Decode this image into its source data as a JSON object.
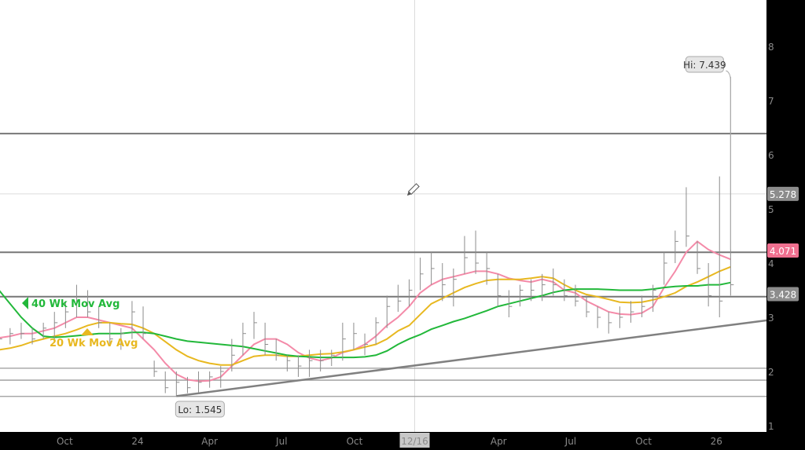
{
  "chart_data": {
    "type": "bar-ohlc",
    "title": "",
    "xlabel": "",
    "ylabel": "",
    "ylim": [
      0.85,
      8.85
    ],
    "grid": false,
    "y_ticks": [
      1,
      2,
      3,
      4,
      5,
      6,
      7,
      8
    ],
    "x_ticks": [
      {
        "d": "2023-10-01",
        "label": "Oct"
      },
      {
        "d": "2024-01-01",
        "label": "24"
      },
      {
        "d": "2024-04-01",
        "label": "Apr"
      },
      {
        "d": "2024-07-01",
        "label": "Jul"
      },
      {
        "d": "2024-10-01",
        "label": "Oct"
      },
      {
        "d": "2024-12-16",
        "label": "12/16",
        "highlight": true
      },
      {
        "d": "2025-04-01",
        "label": "Apr"
      },
      {
        "d": "2025-07-01",
        "label": "Jul"
      },
      {
        "d": "2025-10-01",
        "label": "Oct"
      },
      {
        "d": "2026-01-01",
        "label": "26"
      }
    ],
    "bar_fields": [
      "date",
      "high",
      "low",
      "close"
    ],
    "bars": [
      [
        "2023-07-10",
        2.8,
        2.5,
        2.6
      ],
      [
        "2023-07-24",
        2.8,
        2.5,
        2.7
      ],
      [
        "2023-08-07",
        2.9,
        2.6,
        2.7
      ],
      [
        "2023-08-21",
        2.8,
        2.5,
        2.6
      ],
      [
        "2023-09-04",
        2.9,
        2.6,
        2.8
      ],
      [
        "2023-09-18",
        3.1,
        2.6,
        2.9
      ],
      [
        "2023-10-02",
        3.3,
        2.8,
        3.1
      ],
      [
        "2023-10-16",
        3.6,
        3.0,
        3.3
      ],
      [
        "2023-10-30",
        3.5,
        3.0,
        3.1
      ],
      [
        "2023-11-13",
        3.2,
        2.8,
        2.9
      ],
      [
        "2023-11-27",
        2.9,
        2.5,
        2.6
      ],
      [
        "2023-12-11",
        2.8,
        2.4,
        2.7
      ],
      [
        "2023-12-25",
        3.3,
        2.6,
        3.1
      ],
      [
        "2024-01-08",
        3.2,
        2.6,
        2.7
      ],
      [
        "2024-01-22",
        2.2,
        1.9,
        2.0
      ],
      [
        "2024-02-05",
        2.0,
        1.6,
        1.7
      ],
      [
        "2024-02-19",
        2.0,
        1.545,
        1.8
      ],
      [
        "2024-03-04",
        1.9,
        1.6,
        1.7
      ],
      [
        "2024-03-18",
        2.0,
        1.6,
        1.8
      ],
      [
        "2024-04-01",
        2.0,
        1.7,
        1.9
      ],
      [
        "2024-04-15",
        2.1,
        1.7,
        2.0
      ],
      [
        "2024-04-29",
        2.6,
        2.0,
        2.3
      ],
      [
        "2024-05-13",
        2.9,
        2.3,
        2.7
      ],
      [
        "2024-05-27",
        3.1,
        2.6,
        2.9
      ],
      [
        "2024-06-10",
        2.9,
        2.3,
        2.5
      ],
      [
        "2024-06-24",
        2.6,
        2.2,
        2.3
      ],
      [
        "2024-07-08",
        2.3,
        2.0,
        2.2
      ],
      [
        "2024-07-22",
        2.3,
        1.9,
        2.1
      ],
      [
        "2024-08-05",
        2.4,
        1.9,
        2.2
      ],
      [
        "2024-08-19",
        2.4,
        2.0,
        2.2
      ],
      [
        "2024-09-02",
        2.4,
        2.1,
        2.3
      ],
      [
        "2024-09-16",
        2.9,
        2.2,
        2.6
      ],
      [
        "2024-09-30",
        2.9,
        2.4,
        2.7
      ],
      [
        "2024-10-14",
        2.7,
        2.3,
        2.5
      ],
      [
        "2024-10-28",
        3.0,
        2.5,
        2.9
      ],
      [
        "2024-11-11",
        3.4,
        2.8,
        3.2
      ],
      [
        "2024-11-25",
        3.6,
        3.1,
        3.3
      ],
      [
        "2024-12-09",
        3.7,
        3.2,
        3.5
      ],
      [
        "2024-12-23",
        4.1,
        3.5,
        3.8
      ],
      [
        "2025-01-06",
        4.2,
        3.6,
        3.9
      ],
      [
        "2025-01-20",
        4.0,
        3.3,
        3.6
      ],
      [
        "2025-02-03",
        3.9,
        3.2,
        3.7
      ],
      [
        "2025-02-17",
        4.5,
        3.8,
        4.1
      ],
      [
        "2025-03-03",
        4.6,
        3.8,
        4.0
      ],
      [
        "2025-03-17",
        4.2,
        3.6,
        3.9
      ],
      [
        "2025-03-31",
        3.8,
        3.2,
        3.4
      ],
      [
        "2025-04-14",
        3.5,
        3.0,
        3.2
      ],
      [
        "2025-04-28",
        3.6,
        3.2,
        3.5
      ],
      [
        "2025-05-12",
        3.7,
        3.3,
        3.5
      ],
      [
        "2025-05-26",
        3.8,
        3.3,
        3.6
      ],
      [
        "2025-06-09",
        3.9,
        3.4,
        3.6
      ],
      [
        "2025-06-23",
        3.7,
        3.3,
        3.4
      ],
      [
        "2025-07-07",
        3.6,
        3.2,
        3.3
      ],
      [
        "2025-07-21",
        3.4,
        3.0,
        3.1
      ],
      [
        "2025-08-04",
        3.2,
        2.8,
        3.0
      ],
      [
        "2025-08-18",
        3.1,
        2.7,
        2.9
      ],
      [
        "2025-09-01",
        3.2,
        2.8,
        3.0
      ],
      [
        "2025-09-15",
        3.3,
        2.9,
        3.1
      ],
      [
        "2025-09-29",
        3.4,
        3.0,
        3.2
      ],
      [
        "2025-10-13",
        3.6,
        3.1,
        3.5
      ],
      [
        "2025-10-27",
        4.2,
        3.6,
        4.0
      ],
      [
        "2025-11-10",
        4.6,
        4.0,
        4.4
      ],
      [
        "2025-11-24",
        5.4,
        4.3,
        4.5
      ],
      [
        "2025-12-08",
        4.4,
        3.8,
        3.9
      ],
      [
        "2025-12-22",
        4.0,
        3.2,
        3.4
      ],
      [
        "2026-01-05",
        5.6,
        3.0,
        3.3
      ],
      [
        "2026-01-19",
        7.439,
        3.4,
        3.6
      ]
    ],
    "moving_averages": [
      {
        "name": "",
        "color": "#f48aa8",
        "values": [
          2.62,
          2.65,
          2.7,
          2.7,
          2.75,
          2.8,
          2.9,
          3.0,
          3.0,
          2.95,
          2.9,
          2.85,
          2.8,
          2.6,
          2.4,
          2.15,
          1.95,
          1.85,
          1.82,
          1.83,
          1.9,
          2.1,
          2.3,
          2.5,
          2.6,
          2.6,
          2.5,
          2.35,
          2.25,
          2.2,
          2.25,
          2.35,
          2.4,
          2.5,
          2.65,
          2.85,
          3.0,
          3.2,
          3.45,
          3.6,
          3.7,
          3.75,
          3.8,
          3.85,
          3.85,
          3.8,
          3.72,
          3.68,
          3.65,
          3.7,
          3.65,
          3.5,
          3.45,
          3.3,
          3.2,
          3.1,
          3.06,
          3.05,
          3.08,
          3.2,
          3.55,
          3.85,
          4.2,
          4.4,
          4.25,
          4.15,
          4.07
        ]
      },
      {
        "name": "20 Wk Mov Avg",
        "color": "#e8b820",
        "values": [
          2.4,
          2.43,
          2.48,
          2.55,
          2.6,
          2.65,
          2.7,
          2.77,
          2.85,
          2.9,
          2.9,
          2.88,
          2.87,
          2.8,
          2.7,
          2.55,
          2.4,
          2.28,
          2.2,
          2.15,
          2.12,
          2.12,
          2.2,
          2.28,
          2.3,
          2.3,
          2.28,
          2.28,
          2.3,
          2.32,
          2.33,
          2.36,
          2.4,
          2.45,
          2.5,
          2.6,
          2.75,
          2.85,
          3.05,
          3.25,
          3.35,
          3.45,
          3.55,
          3.62,
          3.68,
          3.7,
          3.7,
          3.7,
          3.72,
          3.75,
          3.72,
          3.6,
          3.5,
          3.42,
          3.38,
          3.33,
          3.28,
          3.27,
          3.28,
          3.32,
          3.38,
          3.45,
          3.57,
          3.65,
          3.75,
          3.85,
          3.93
        ]
      },
      {
        "name": "40 Wk Mov Avg",
        "color": "#22b83a",
        "values": [
          3.5,
          3.25,
          3.0,
          2.8,
          2.65,
          2.63,
          2.64,
          2.66,
          2.68,
          2.7,
          2.7,
          2.7,
          2.72,
          2.72,
          2.7,
          2.65,
          2.6,
          2.56,
          2.54,
          2.52,
          2.5,
          2.48,
          2.46,
          2.42,
          2.38,
          2.34,
          2.3,
          2.28,
          2.27,
          2.26,
          2.26,
          2.26,
          2.26,
          2.27,
          2.3,
          2.38,
          2.5,
          2.6,
          2.68,
          2.78,
          2.85,
          2.92,
          2.98,
          3.05,
          3.12,
          3.2,
          3.25,
          3.3,
          3.35,
          3.4,
          3.46,
          3.5,
          3.52,
          3.52,
          3.52,
          3.51,
          3.5,
          3.5,
          3.5,
          3.52,
          3.55,
          3.57,
          3.58,
          3.58,
          3.6,
          3.6,
          3.64
        ]
      }
    ],
    "horizontal_levels": [
      6.39,
      4.2,
      3.38,
      2.06,
      1.84,
      1.54
    ],
    "reference_line": 5.278,
    "trendline": [
      {
        "d": "2024-02-19",
        "v": 1.545
      },
      {
        "d": "2026-03-09",
        "v": 2.95
      }
    ],
    "crosshair_date": "2024-12-16",
    "price_labels": [
      {
        "value": 5.278,
        "text": "5.278",
        "color": "#8c8c8c"
      },
      {
        "value": 4.071,
        "text": "4.071",
        "color": "#f07090"
      },
      {
        "value": 3.428,
        "text": "3.428",
        "color": "#8c8c8c"
      }
    ],
    "annotations": {
      "high": {
        "text": "Hi: 7.439",
        "d": "2026-01-19",
        "v": 7.439
      },
      "low": {
        "text": "Lo: 1.545",
        "d": "2024-02-19",
        "v": 1.545
      },
      "ma40_label": "40 Wk Mov Avg",
      "ma20_label": "20 Wk Mov Avg"
    },
    "colors": {
      "bars": "#8c8c8c",
      "levels": "#7a7a7a",
      "axis_bg": "#000000",
      "ma40": "#22b83a",
      "ma20": "#e8b820",
      "ma_fast": "#f48aa8"
    },
    "icons": {
      "drawing_tool": "pencil-icon"
    }
  }
}
